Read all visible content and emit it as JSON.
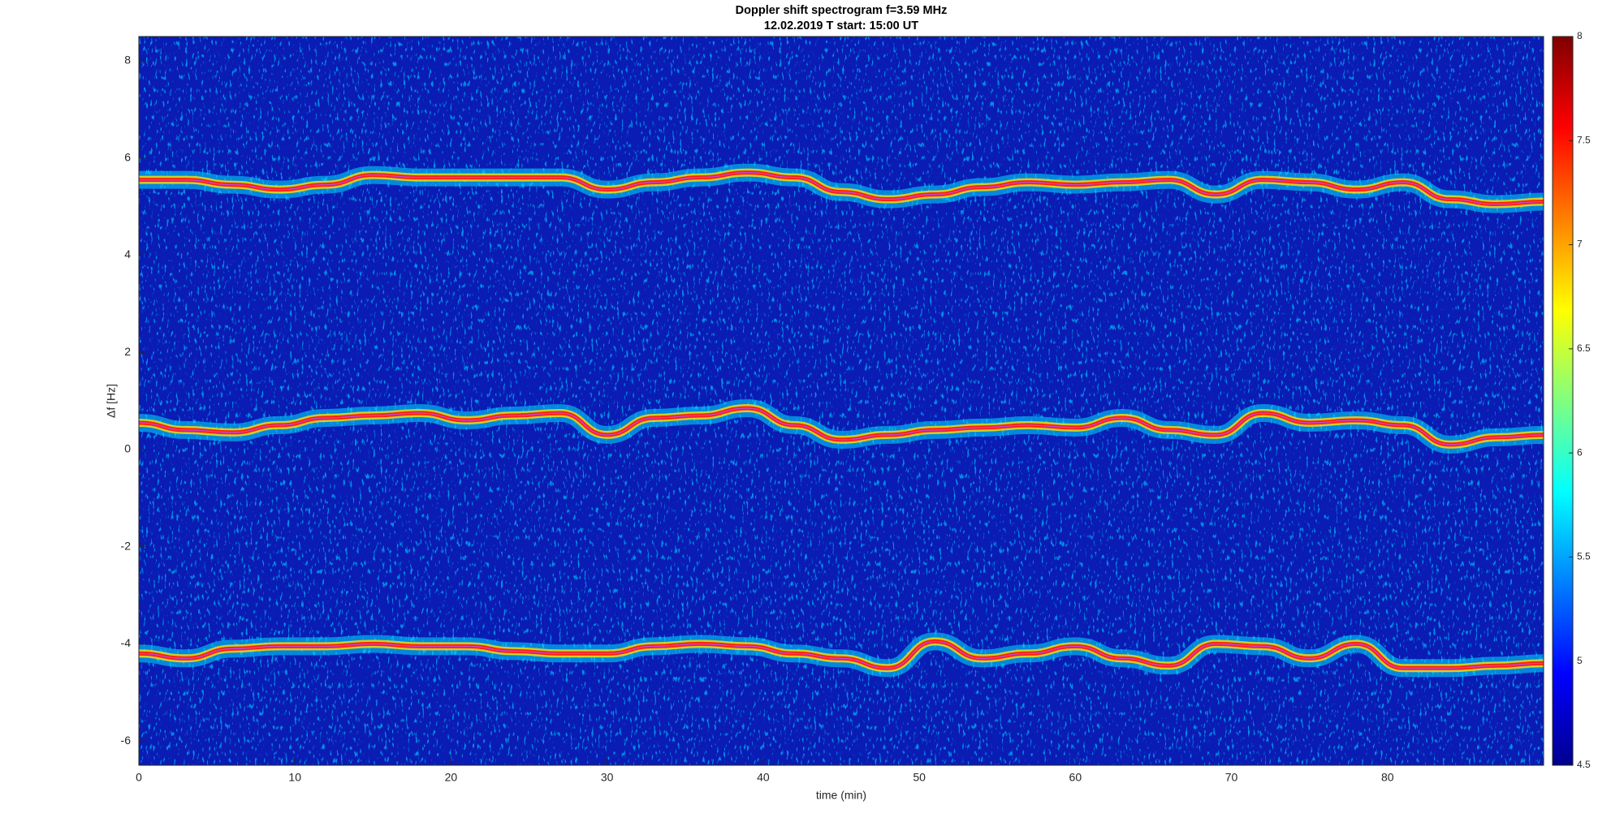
{
  "chart_data": {
    "type": "spectrogram",
    "title": "Doppler shift spectrogram f=3.59 MHz",
    "subtitle": "12.02.2019   T start: 15:00 UT",
    "xlabel": "time (min)",
    "ylabel": "Δf [Hz]",
    "xlim": [
      0,
      90
    ],
    "xticks": [
      0,
      10,
      20,
      30,
      40,
      50,
      60,
      70,
      80
    ],
    "ylim": [
      -6.5,
      8.5
    ],
    "yticks": [
      -6,
      -4,
      -2,
      0,
      2,
      4,
      6,
      8
    ],
    "colormap": "jet",
    "clim": [
      4.5,
      8
    ],
    "cticks": [
      4.5,
      5,
      5.5,
      6,
      6.5,
      7,
      7.5,
      8
    ],
    "x": [
      0,
      3,
      6,
      9,
      12,
      15,
      18,
      21,
      24,
      27,
      30,
      33,
      36,
      39,
      42,
      45,
      48,
      51,
      54,
      57,
      60,
      63,
      66,
      69,
      72,
      75,
      78,
      81,
      84,
      87,
      90
    ],
    "series": [
      {
        "color": "#ff2000",
        "values": [
          5.55,
          5.55,
          5.45,
          5.35,
          5.45,
          5.65,
          5.6,
          5.6,
          5.6,
          5.6,
          5.35,
          5.5,
          5.6,
          5.7,
          5.6,
          5.3,
          5.15,
          5.25,
          5.4,
          5.5,
          5.45,
          5.5,
          5.55,
          5.25,
          5.55,
          5.5,
          5.35,
          5.5,
          5.15,
          5.05,
          5.1
        ]
      },
      {
        "color": "#ff2000",
        "values": [
          0.55,
          0.4,
          0.35,
          0.5,
          0.65,
          0.7,
          0.75,
          0.6,
          0.7,
          0.75,
          0.3,
          0.65,
          0.7,
          0.85,
          0.5,
          0.2,
          0.3,
          0.4,
          0.45,
          0.5,
          0.45,
          0.65,
          0.4,
          0.3,
          0.75,
          0.55,
          0.6,
          0.5,
          0.1,
          0.25,
          0.3
        ]
      },
      {
        "color": "#ff2000",
        "values": [
          -4.2,
          -4.3,
          -4.1,
          -4.05,
          -4.05,
          -4.0,
          -4.05,
          -4.05,
          -4.15,
          -4.2,
          -4.2,
          -4.05,
          -4.0,
          -4.05,
          -4.2,
          -4.3,
          -4.5,
          -3.95,
          -4.3,
          -4.2,
          -4.05,
          -4.3,
          -4.45,
          -4.0,
          -4.05,
          -4.3,
          -4.0,
          -4.5,
          -4.5,
          -4.45,
          -4.4
        ]
      }
    ]
  }
}
